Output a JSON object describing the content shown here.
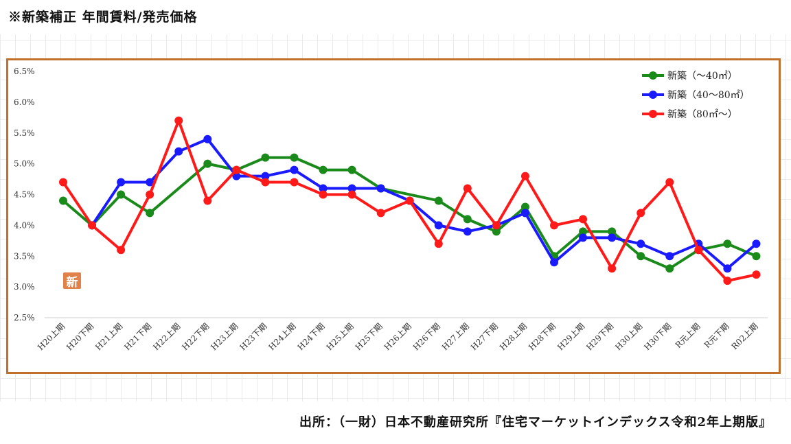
{
  "header": {
    "title": "※新築補正 年間賃料/発売価格"
  },
  "source": {
    "text": "出所：（一財）日本不動産研究所『住宅マーケットインデックス令和2年上期版』"
  },
  "badge": {
    "label": "新"
  },
  "colors": {
    "frame": "#c0702a",
    "green": "#1a8a1a",
    "blue": "#1a1aff",
    "red": "#ff1a1a"
  },
  "chart_data": {
    "type": "line",
    "title": "",
    "xlabel": "",
    "ylabel": "",
    "ylim": [
      2.5,
      6.5
    ],
    "yticks": [
      "2.5%",
      "3.0%",
      "3.5%",
      "4.0%",
      "4.5%",
      "5.0%",
      "5.5%",
      "6.0%",
      "6.5%"
    ],
    "ytick_values": [
      2.5,
      3.0,
      3.5,
      4.0,
      4.5,
      5.0,
      5.5,
      6.0,
      6.5
    ],
    "grid": "horizontal baseline only",
    "legend_position": "top-right",
    "categories": [
      "H20上期",
      "H20下期",
      "H21上期",
      "H21下期",
      "H22上期",
      "H22下期",
      "H23上期",
      "H23下期",
      "H24上期",
      "H24下期",
      "H25上期",
      "H25下期",
      "H26上期",
      "H26下期",
      "H27上期",
      "H27下期",
      "H28上期",
      "H28下期",
      "H29上期",
      "H29下期",
      "H30上期",
      "H30下期",
      "R元上期",
      "R元下期",
      "R02上期"
    ],
    "series": [
      {
        "name": "新築（～40㎡）",
        "color": "#1a8a1a",
        "values": [
          4.4,
          4.0,
          4.5,
          4.2,
          null,
          5.0,
          4.9,
          5.1,
          5.1,
          4.9,
          4.9,
          4.6,
          null,
          4.4,
          4.1,
          3.9,
          4.3,
          3.5,
          3.9,
          3.9,
          3.5,
          3.3,
          3.6,
          3.7,
          3.5
        ]
      },
      {
        "name": "新築（40～80㎡）",
        "color": "#1a1aff",
        "values": [
          null,
          4.0,
          4.7,
          4.7,
          5.2,
          5.4,
          4.8,
          4.8,
          4.9,
          4.6,
          4.6,
          4.6,
          4.4,
          4.0,
          3.9,
          4.0,
          4.2,
          3.4,
          3.8,
          3.8,
          3.7,
          3.5,
          3.7,
          3.3,
          3.7
        ]
      },
      {
        "name": "新築（80㎡～）",
        "color": "#ff1a1a",
        "values": [
          4.7,
          4.0,
          3.6,
          4.5,
          5.7,
          4.4,
          4.9,
          4.7,
          4.7,
          4.5,
          4.5,
          4.2,
          4.4,
          3.7,
          4.6,
          4.0,
          4.8,
          4.0,
          4.1,
          3.3,
          4.2,
          4.7,
          3.6,
          3.1,
          3.2
        ]
      }
    ]
  }
}
